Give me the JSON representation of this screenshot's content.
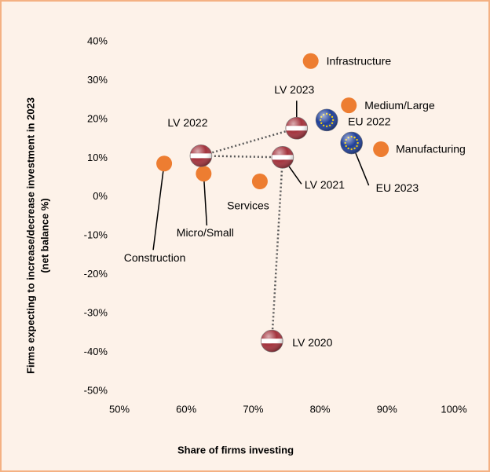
{
  "chart_data": {
    "type": "scatter",
    "ylabel": [
      "Firms expecting to increase/decrease investment in 2023",
      "(net balance %)"
    ],
    "xlabel": "Share of firms investing",
    "xlim": [
      50,
      100
    ],
    "xticks": [
      {
        "value": 50,
        "label": "50%"
      },
      {
        "value": 60,
        "label": "60%"
      },
      {
        "value": 70,
        "label": "70%"
      },
      {
        "value": 80,
        "label": "80%"
      },
      {
        "value": 90,
        "label": "90%"
      },
      {
        "value": 100,
        "label": "100%"
      }
    ],
    "ylim": [
      -50,
      40
    ],
    "yticks": [
      {
        "value": -50,
        "label": "-50%"
      },
      {
        "value": -40,
        "label": "-40%"
      },
      {
        "value": -30,
        "label": "-30%"
      },
      {
        "value": -20,
        "label": "-20%"
      },
      {
        "value": -10,
        "label": "-10%"
      },
      {
        "value": 0,
        "label": "0%"
      },
      {
        "value": 10,
        "label": "10%"
      },
      {
        "value": 20,
        "label": "20%"
      },
      {
        "value": 30,
        "label": "30%"
      },
      {
        "value": 40,
        "label": "40%"
      }
    ],
    "series": [
      {
        "color": "#ed7d31",
        "labels": [
          "Infrastructure",
          "Medium/Large",
          "Manufacturing",
          "Construction",
          "Micro/Small",
          "Services"
        ],
        "x": [
          78.6,
          84.3,
          89.1,
          56.7,
          62.6,
          71.0
        ],
        "values": [
          35,
          23.6,
          12.3,
          8.6,
          6.0,
          4.0
        ]
      },
      {
        "color": "#a3333d",
        "labels": [
          "LV 2020",
          "LV 2021",
          "LV 2022",
          "LV 2023"
        ],
        "connect": true,
        "x": [
          72.8,
          74.4,
          62.2,
          76.5
        ],
        "values": [
          -37.1,
          10.2,
          10.6,
          17.7
        ]
      },
      {
        "color": "#1f3f99",
        "labels": [
          "EU 2022",
          "EU 2023"
        ],
        "x": [
          81.0,
          84.7
        ],
        "values": [
          19.8,
          13.9
        ]
      }
    ]
  }
}
